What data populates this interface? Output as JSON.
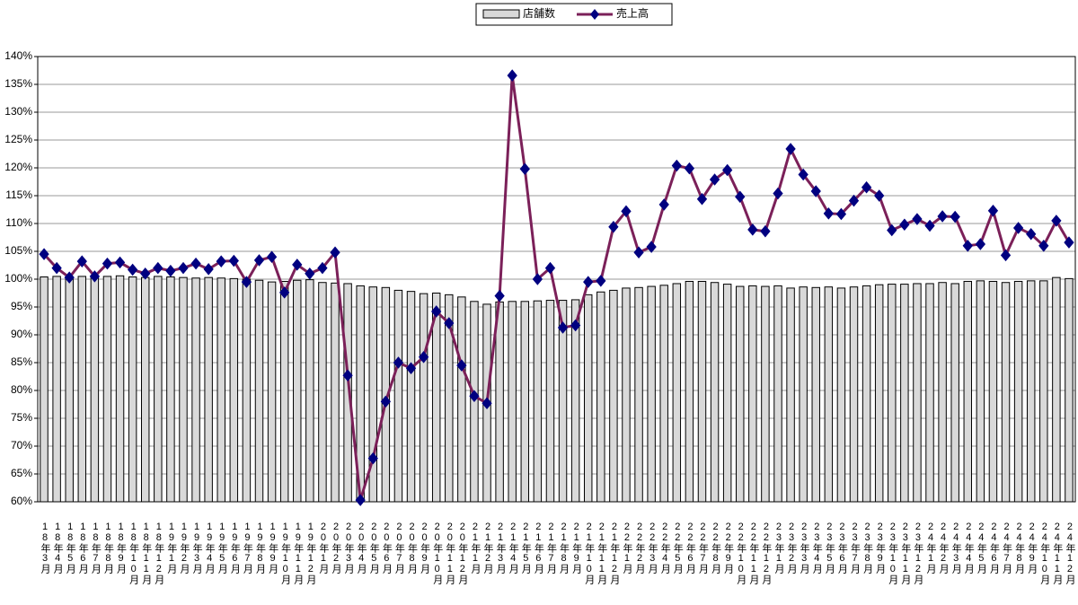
{
  "chart_data": {
    "type": "bar",
    "categories": [
      "18年3月",
      "18年4月",
      "18年5月",
      "18年6月",
      "18年7月",
      "18年8月",
      "18年9月",
      "18年10月",
      "18年11月",
      "18年12月",
      "19年1月",
      "19年2月",
      "19年3月",
      "19年4月",
      "19年5月",
      "19年6月",
      "19年7月",
      "19年8月",
      "19年9月",
      "19年10月",
      "19年11月",
      "19年12月",
      "20年1月",
      "20年2月",
      "20年3月",
      "20年4月",
      "20年5月",
      "20年6月",
      "20年7月",
      "20年8月",
      "20年9月",
      "20年10月",
      "20年11月",
      "20年12月",
      "21年1月",
      "21年2月",
      "21年3月",
      "21年4月",
      "21年5月",
      "21年6月",
      "21年7月",
      "21年8月",
      "21年9月",
      "21年10月",
      "21年11月",
      "21年12月",
      "22年1月",
      "22年2月",
      "22年3月",
      "22年4月",
      "22年5月",
      "22年6月",
      "22年7月",
      "22年8月",
      "22年9月",
      "22年10月",
      "22年11月",
      "22年12月",
      "23年1月",
      "23年2月",
      "23年3月",
      "23年4月",
      "23年5月",
      "23年6月",
      "23年7月",
      "23年8月",
      "23年9月",
      "23年10月",
      "23年11月",
      "23年12月",
      "24年1月",
      "24年2月",
      "24年3月",
      "24年4月",
      "24年5月",
      "24年6月",
      "24年7月",
      "24年8月",
      "24年9月",
      "24年10月",
      "24年11月",
      "24年12月"
    ],
    "series": [
      {
        "name": "店舗数",
        "type": "bar",
        "color": "#d9d9d9",
        "values": [
          100.4,
          100.5,
          100.3,
          100.5,
          100.6,
          100.5,
          100.6,
          100.4,
          100.3,
          100.5,
          100.4,
          100.3,
          100.2,
          100.3,
          100.2,
          100.1,
          100,
          99.8,
          99.5,
          99.6,
          99.8,
          99.9,
          99.4,
          99.3,
          99.2,
          98.8,
          98.6,
          98.5,
          98,
          97.8,
          97.4,
          97.5,
          97.2,
          96.8,
          96,
          95.5,
          95.9,
          96,
          96,
          96.1,
          96.2,
          96.2,
          96.3,
          97.2,
          97.7,
          98,
          98.4,
          98.5,
          98.7,
          98.9,
          99.2,
          99.6,
          99.6,
          99.4,
          99.1,
          98.7,
          98.8,
          98.7,
          98.8,
          98.4,
          98.6,
          98.5,
          98.6,
          98.4,
          98.6,
          98.8,
          99,
          99.1,
          99.1,
          99.2,
          99.2,
          99.4,
          99.2,
          99.6,
          99.7,
          99.6,
          99.4,
          99.6,
          99.7,
          99.7,
          100.3,
          100.1
        ]
      },
      {
        "name": "売上高",
        "type": "line",
        "color": "#7b2059",
        "marker_color": "#000080",
        "values": [
          104.5,
          102,
          100.3,
          103.2,
          100.5,
          102.8,
          103,
          101.7,
          101,
          102,
          101.5,
          102,
          102.8,
          101.8,
          103.2,
          103.3,
          99.5,
          103.4,
          104,
          97.6,
          102.6,
          101,
          102,
          104.8,
          82.7,
          60.3,
          67.8,
          78,
          85,
          84,
          86,
          94.2,
          92.1,
          84.5,
          79,
          77.7,
          97,
          136.6,
          119.8,
          100,
          102,
          91.3,
          91.7,
          99.5,
          99.7,
          109.4,
          112.2,
          104.8,
          105.8,
          113.4,
          120.4,
          119.9,
          114.4,
          117.9,
          119.6,
          114.8,
          108.9,
          108.6,
          115.4,
          123.4,
          118.8,
          115.8,
          111.8,
          111.7,
          114.1,
          116.5,
          115,
          108.8,
          109.8,
          110.8,
          109.6,
          111.3,
          111.2,
          106,
          106.3,
          112.3,
          104.3,
          109.2,
          108.1,
          106,
          110.5,
          106.6
        ]
      }
    ],
    "ylim": [
      60,
      140
    ],
    "yticks": [
      {
        "value": 60,
        "label": "60%"
      },
      {
        "value": 65,
        "label": "65%"
      },
      {
        "value": 70,
        "label": "70%"
      },
      {
        "value": 75,
        "label": "75%"
      },
      {
        "value": 80,
        "label": "80%"
      },
      {
        "value": 85,
        "label": "85%"
      },
      {
        "value": 90,
        "label": "90%"
      },
      {
        "value": 95,
        "label": "95%"
      },
      {
        "value": 100,
        "label": "100%"
      },
      {
        "value": 105,
        "label": "105%"
      },
      {
        "value": 110,
        "label": "110%"
      },
      {
        "value": 115,
        "label": "115%"
      },
      {
        "value": 120,
        "label": "120%"
      },
      {
        "value": 125,
        "label": "125%"
      },
      {
        "value": 130,
        "label": "130%"
      },
      {
        "value": 135,
        "label": "135%"
      },
      {
        "value": 140,
        "label": "140%"
      }
    ],
    "grid": true,
    "legend": "top"
  }
}
